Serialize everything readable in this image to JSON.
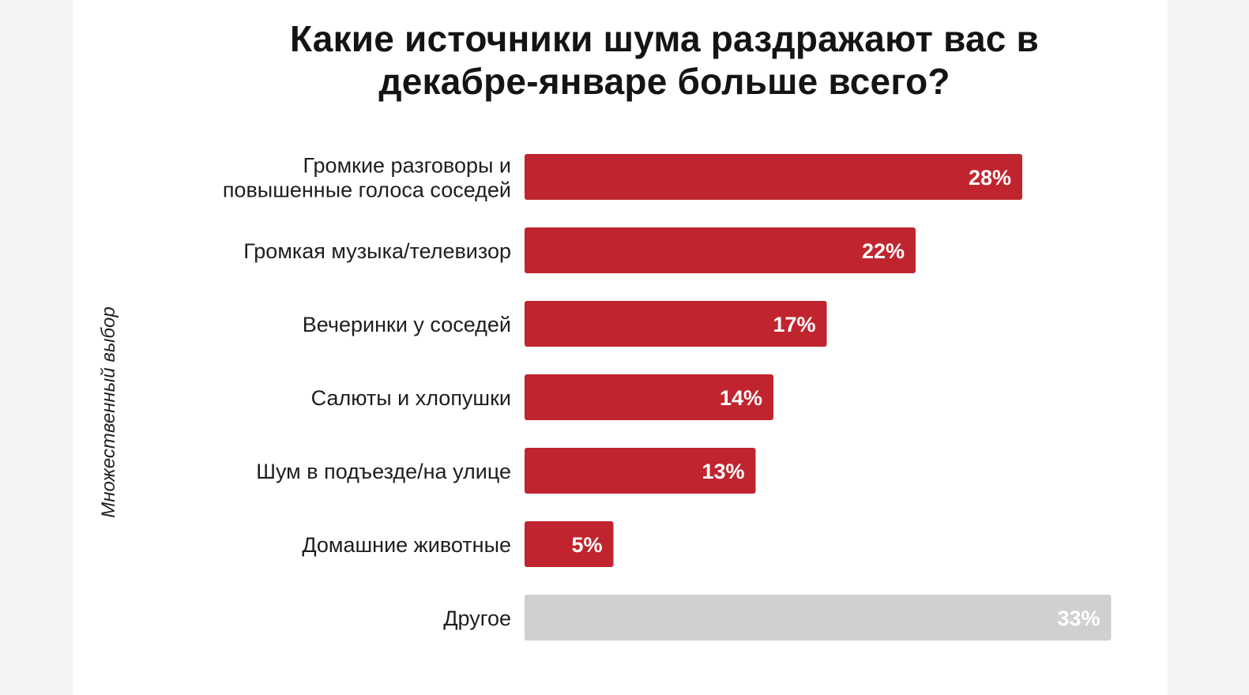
{
  "chart_data": {
    "type": "bar",
    "orientation": "horizontal",
    "title_lines": [
      "Какие источники шума раздражают вас в",
      "декабре-январе больше всего?"
    ],
    "ylabel": "Множественный выбор",
    "categories": [
      [
        "Громкие разговоры и",
        "повышенные голоса соседей"
      ],
      [
        "Громкая музыка/телевизор"
      ],
      [
        "Вечеринки у соседей"
      ],
      [
        "Салюты и хлопушки"
      ],
      [
        "Шум в подъезде/на улице"
      ],
      [
        "Домашние животные"
      ],
      [
        "Другое"
      ]
    ],
    "values": [
      28,
      22,
      17,
      14,
      13,
      5,
      33
    ],
    "value_labels": [
      "28%",
      "22%",
      "17%",
      "14%",
      "13%",
      "5%",
      "33%"
    ],
    "unit": "%",
    "colors": [
      "#c0252f",
      "#c0252f",
      "#c0252f",
      "#c0252f",
      "#c0252f",
      "#c0252f",
      "#d0d0d0"
    ],
    "grid": false,
    "legend": "none"
  }
}
